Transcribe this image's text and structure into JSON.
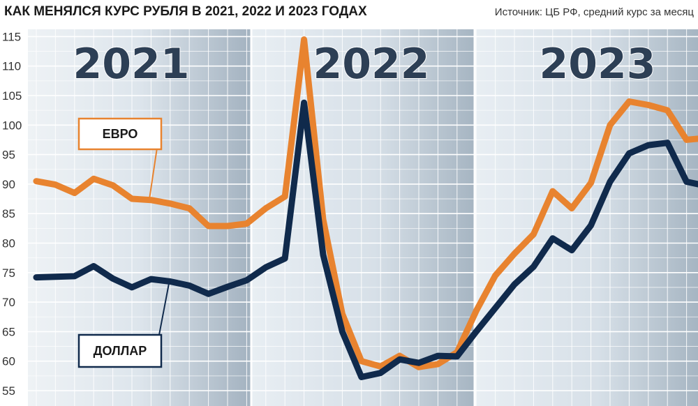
{
  "header": {
    "title": "КАК МЕНЯЛСЯ КУРС РУБЛЯ В 2021, 2022 И 2023 ГОДАХ",
    "source": "Источник: ЦБ РФ, средний курс за месяц"
  },
  "colors": {
    "euro": "#e8832f",
    "dollar": "#102a4c",
    "background_light": "#e6edf2",
    "background_dark": "#a9b7c3",
    "grid": "#ffffff"
  },
  "chart_data": {
    "type": "line",
    "title": "КАК МЕНЯЛСЯ КУРС РУБЛЯ В 2021, 2022 И 2023 ГОДАХ",
    "ylim": [
      54,
      116
    ],
    "yticks": [
      55,
      60,
      65,
      70,
      75,
      80,
      85,
      90,
      95,
      100,
      105,
      110,
      115
    ],
    "grid": true,
    "years": [
      "2021",
      "2022",
      "2023"
    ],
    "x": [
      "2021-01",
      "2021-02",
      "2021-03",
      "2021-04",
      "2021-05",
      "2021-06",
      "2021-07",
      "2021-08",
      "2021-09",
      "2021-10",
      "2021-11",
      "2021-12",
      "2022-01",
      "2022-02",
      "2022-03",
      "2022-04",
      "2022-05",
      "2022-06",
      "2022-07",
      "2022-08",
      "2022-09",
      "2022-10",
      "2022-11",
      "2022-12",
      "2023-01",
      "2023-02",
      "2023-03",
      "2023-04",
      "2023-05",
      "2023-06",
      "2023-07",
      "2023-08",
      "2023-09",
      "2023-10",
      "2023-11",
      "2023-12"
    ],
    "series": [
      {
        "name": "ЕВРО",
        "values": [
          90.5,
          89.9,
          88.5,
          90.9,
          89.8,
          87.5,
          87.3,
          86.7,
          85.9,
          82.9,
          82.9,
          83.3,
          85.9,
          87.9,
          114.5,
          84.0,
          68.0,
          60.0,
          59.1,
          60.9,
          59.0,
          59.5,
          61.5,
          68.5,
          74.5,
          78.2,
          81.5,
          88.8,
          85.9,
          90.2,
          100.0,
          104.0,
          103.4,
          102.5,
          97.5,
          97.8
        ]
      },
      {
        "name": "ДОЛЛАР",
        "values": [
          74.2,
          74.3,
          74.4,
          76.1,
          74.0,
          72.5,
          73.9,
          73.5,
          72.8,
          71.4,
          72.6,
          73.7,
          75.9,
          77.4,
          103.8,
          78.0,
          65.0,
          57.3,
          58.0,
          60.3,
          59.7,
          60.9,
          60.8,
          65.0,
          69.0,
          73.0,
          76.0,
          80.8,
          78.8,
          83.0,
          90.4,
          95.2,
          96.6,
          97.0,
          90.4,
          89.7
        ]
      }
    ],
    "legend": [
      {
        "label": "ЕВРО",
        "series": "ЕВРО",
        "placement": "left, beside 2021 line"
      },
      {
        "label": "ДОЛЛАР",
        "series": "ДОЛЛАР",
        "placement": "bottom-left"
      }
    ]
  }
}
